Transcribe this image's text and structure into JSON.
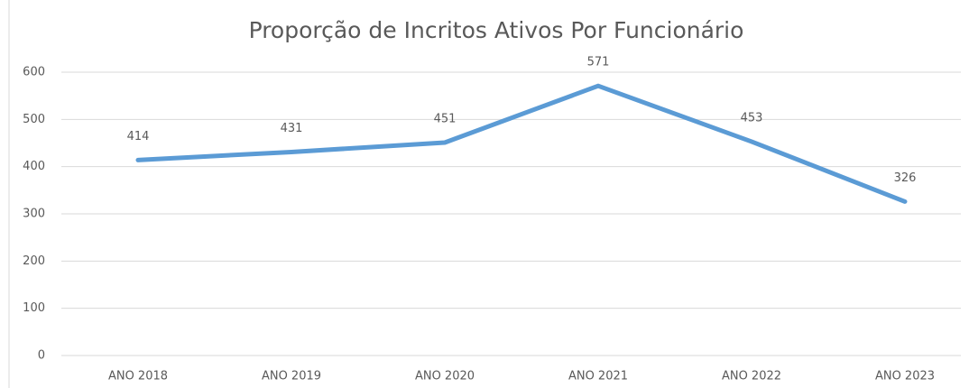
{
  "chart_data": {
    "type": "line",
    "title": "Proporção de Incritos Ativos Por Funcionário",
    "categories": [
      "ANO 2018",
      "ANO 2019",
      "ANO 2020",
      "ANO 2021",
      "ANO 2022",
      "ANO 2023"
    ],
    "series": [
      {
        "name": "Proporção",
        "color": "#5b9bd5",
        "values": [
          414,
          431,
          451,
          571,
          453,
          326
        ]
      }
    ],
    "ylim": [
      0,
      600
    ],
    "yticks": [
      0,
      100,
      200,
      300,
      400,
      500,
      600
    ],
    "grid": true
  }
}
